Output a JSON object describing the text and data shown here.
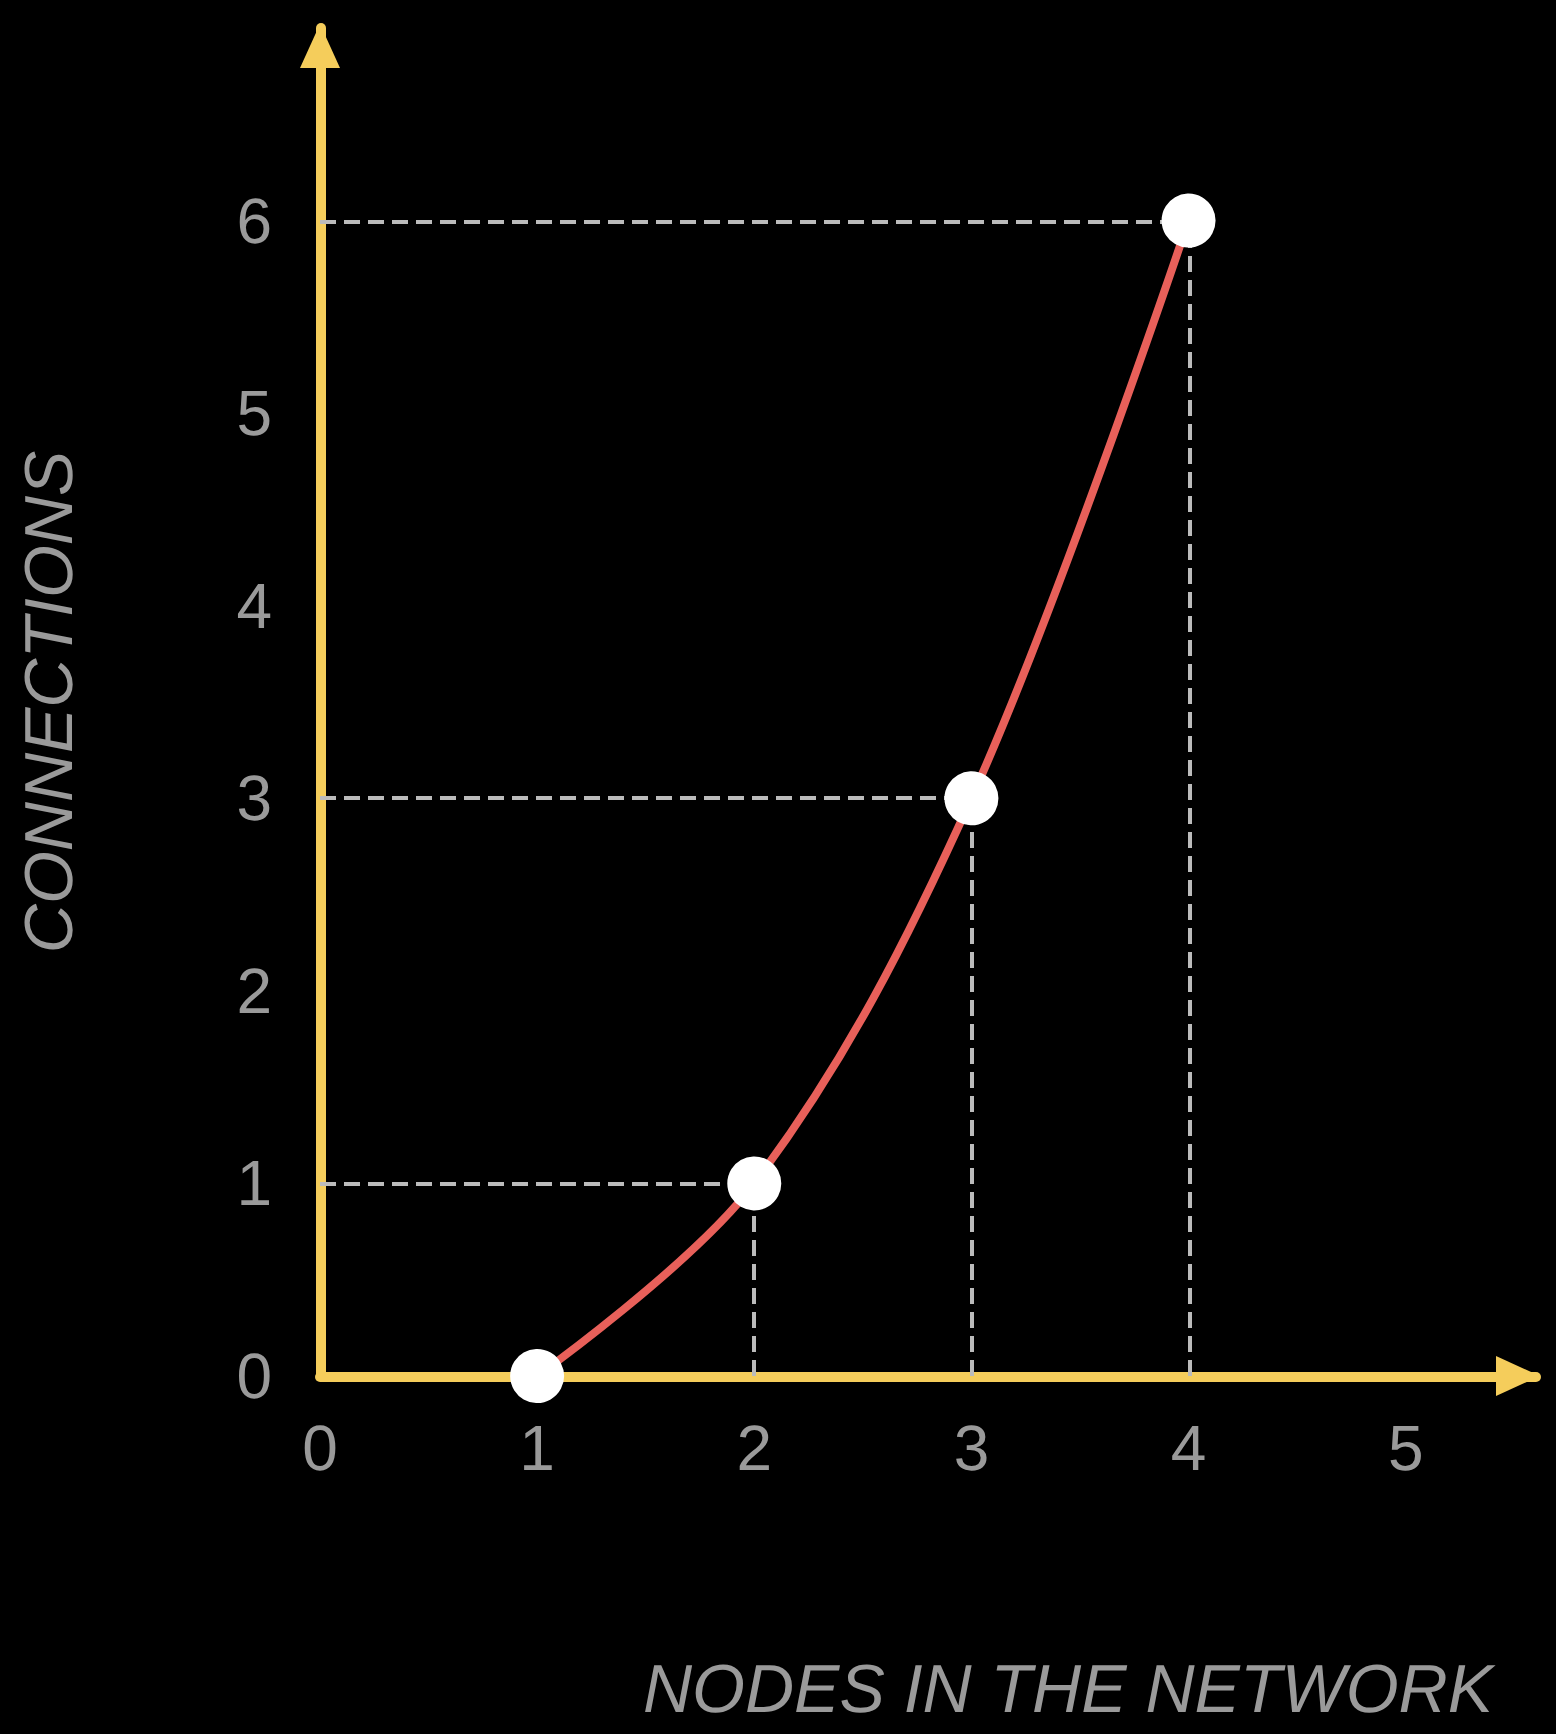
{
  "chart_data": {
    "type": "line",
    "xlabel": "NODES IN THE NETWORK",
    "ylabel": "CONNECTIONS",
    "x": [
      1,
      2,
      3,
      4
    ],
    "series": [
      {
        "color": "#e8605a",
        "values": [
          0,
          1,
          3,
          6
        ]
      }
    ],
    "xlim": [
      0,
      5.6
    ],
    "xticks": [
      0,
      1,
      2,
      3,
      4,
      5
    ],
    "ylim": [
      0,
      7
    ],
    "yticks": [
      0,
      1,
      2,
      3,
      4,
      5,
      6
    ],
    "grid": false,
    "marker": "circle",
    "line_style": "solid",
    "ref_lines": [
      {
        "axis": "y",
        "value": 1,
        "color": "#bbbbbb",
        "line_style": "dashed"
      },
      {
        "axis": "y",
        "value": 3,
        "color": "#bbbbbb",
        "line_style": "dashed"
      },
      {
        "axis": "y",
        "value": 6,
        "color": "#bbbbbb",
        "line_style": "dashed"
      },
      {
        "axis": "x",
        "value": 2,
        "color": "#bbbbbb",
        "line_style": "dashed"
      },
      {
        "axis": "x",
        "value": 3,
        "color": "#bbbbbb",
        "line_style": "dashed"
      },
      {
        "axis": "x",
        "value": 4,
        "color": "#bbbbbb",
        "line_style": "dashed"
      }
    ]
  }
}
